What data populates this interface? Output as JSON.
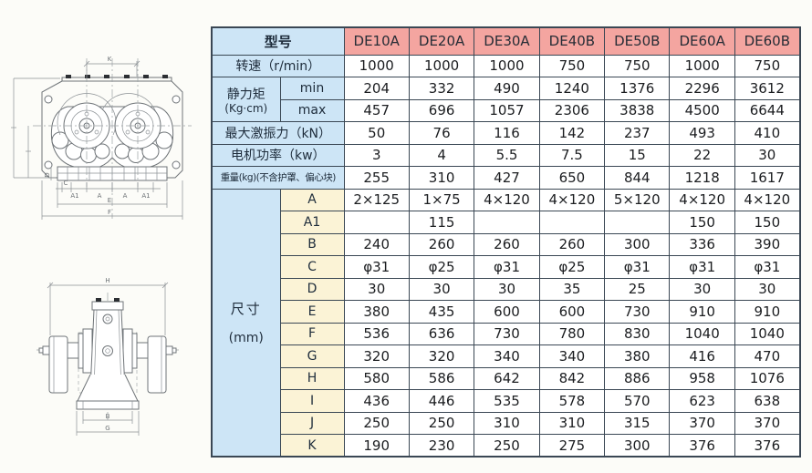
{
  "colors": {
    "header_pink": "#f4a5a0",
    "label_blue": "#cde5f6",
    "dim_cream": "#fbf3d6",
    "border": "#3a4754"
  },
  "table": {
    "model_header": {
      "label": "型号",
      "models": [
        "DE10A",
        "DE20A",
        "DE30A",
        "DE40B",
        "DE50B",
        "DE60A",
        "DE60B"
      ]
    },
    "speed_row": {
      "label": "转速（r/min）",
      "values": [
        "1000",
        "1000",
        "1000",
        "750",
        "750",
        "1000",
        "750"
      ]
    },
    "static_moment": {
      "label": "静力矩",
      "unit": "(Kg·cm)",
      "rows": [
        {
          "sub": "min",
          "values": [
            "204",
            "332",
            "490",
            "1240",
            "1376",
            "2296",
            "3612"
          ]
        },
        {
          "sub": "max",
          "values": [
            "457",
            "696",
            "1057",
            "2306",
            "3838",
            "4500",
            "6644"
          ]
        }
      ]
    },
    "simple_rows": [
      {
        "key": "exciting-force",
        "label": "最大激振力（kN）",
        "small": false,
        "values": [
          "50",
          "76",
          "116",
          "142",
          "237",
          "493",
          "410"
        ]
      },
      {
        "key": "motor-power",
        "label": "电机功率（kw）",
        "small": false,
        "values": [
          "3",
          "4",
          "5.5",
          "7.5",
          "15",
          "22",
          "30"
        ]
      },
      {
        "key": "weight",
        "label": "重量(kg)(不含护罩、偏心块)",
        "small": true,
        "values": [
          "255",
          "310",
          "427",
          "650",
          "844",
          "1218",
          "1617"
        ]
      }
    ],
    "dimensions": {
      "label": "尺寸",
      "unit": "(mm)",
      "rows": [
        {
          "sub": "A",
          "values": [
            "2×125",
            "1×75",
            "4×120",
            "4×120",
            "5×120",
            "4×120",
            "4×120"
          ]
        },
        {
          "sub": "A1",
          "values": [
            "",
            "115",
            "",
            "",
            "",
            "150",
            "150"
          ]
        },
        {
          "sub": "B",
          "values": [
            "240",
            "260",
            "260",
            "260",
            "300",
            "336",
            "390"
          ]
        },
        {
          "sub": "C",
          "values": [
            "φ31",
            "φ25",
            "φ31",
            "φ25",
            "φ31",
            "φ31",
            "φ31"
          ]
        },
        {
          "sub": "D",
          "values": [
            "30",
            "30",
            "30",
            "35",
            "25",
            "30",
            "30"
          ]
        },
        {
          "sub": "E",
          "values": [
            "380",
            "435",
            "600",
            "600",
            "730",
            "910",
            "910"
          ]
        },
        {
          "sub": "F",
          "values": [
            "536",
            "636",
            "730",
            "780",
            "830",
            "1040",
            "1040"
          ]
        },
        {
          "sub": "G",
          "values": [
            "320",
            "320",
            "340",
            "340",
            "380",
            "416",
            "470"
          ]
        },
        {
          "sub": "H",
          "values": [
            "580",
            "586",
            "642",
            "842",
            "886",
            "958",
            "1076"
          ]
        },
        {
          "sub": "I",
          "values": [
            "436",
            "446",
            "535",
            "578",
            "570",
            "623",
            "638"
          ]
        },
        {
          "sub": "J",
          "values": [
            "250",
            "250",
            "310",
            "310",
            "315",
            "370",
            "370"
          ]
        },
        {
          "sub": "K",
          "values": [
            "190",
            "230",
            "250",
            "275",
            "300",
            "376",
            "376"
          ]
        }
      ]
    }
  },
  "drawings": {
    "front_view": {
      "dim_top": "K",
      "dim_bottom_small": "C",
      "dim_bottom_1": "A1",
      "dim_bottom_2": "A",
      "dim_bottom_3": "A",
      "dim_bottom_4": "A1",
      "dim_width_inner": "E",
      "dim_width_outer": "F",
      "dim_base": "D"
    },
    "side_view": {
      "dim_top": "H",
      "dim_bottom_inner": "B",
      "dim_bottom_outer": "G"
    }
  }
}
